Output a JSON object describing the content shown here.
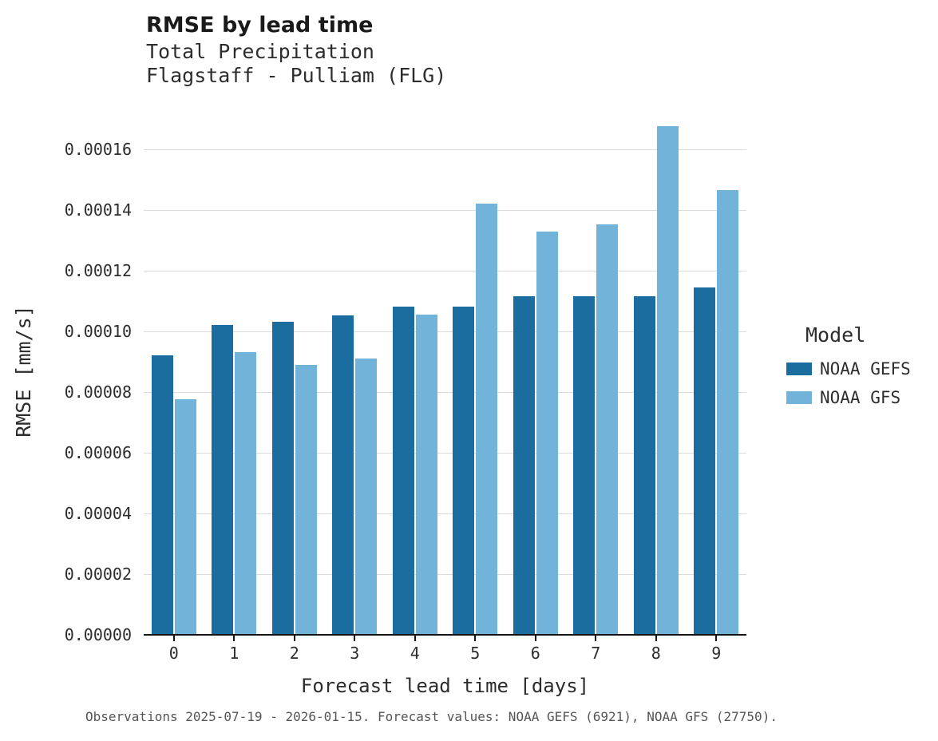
{
  "chart_data": {
    "type": "bar",
    "title": "RMSE by lead time",
    "subtitle_line1": "Total Precipitation",
    "subtitle_line2": "Flagstaff - Pulliam (FLG)",
    "xlabel": "Forecast lead time [days]",
    "ylabel": "RMSE [mm/s]",
    "legend_title": "Model",
    "legend_position": "right",
    "grid": "horizontal",
    "categories": [
      "0",
      "1",
      "2",
      "3",
      "4",
      "5",
      "6",
      "7",
      "8",
      "9"
    ],
    "series": [
      {
        "name": "NOAA GEFS",
        "color": "#1a6d9e",
        "values": [
          9.2e-05,
          0.000102,
          0.000103,
          0.0001052,
          0.000108,
          0.000108,
          0.0001115,
          0.0001115,
          0.0001115,
          0.0001145
        ]
      },
      {
        "name": "NOAA GFS",
        "color": "#71b3d9",
        "values": [
          7.75e-05,
          9.32e-05,
          8.88e-05,
          9.1e-05,
          0.0001055,
          0.000142,
          0.0001328,
          0.0001353,
          0.0001675,
          0.0001465
        ]
      }
    ],
    "ylim": [
      0,
      0.000171
    ],
    "ytick_values": [
      0,
      2e-05,
      4e-05,
      6e-05,
      8e-05,
      0.0001,
      0.00012,
      0.00014,
      0.00016
    ],
    "ytick_labels": [
      "0.00000",
      "0.00002",
      "0.00004",
      "0.00006",
      "0.00008",
      "0.00010",
      "0.00012",
      "0.00014",
      "0.00016"
    ],
    "caption": "Observations 2025-07-19 - 2026-01-15. Forecast values: NOAA GEFS (6921), NOAA GFS (27750)."
  }
}
